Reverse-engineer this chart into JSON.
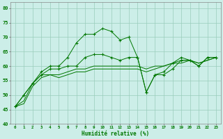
{
  "title": "",
  "xlabel": "Humidité relative (%)",
  "ylabel": "",
  "background_color": "#cceee8",
  "grid_color": "#99ccbb",
  "line_color": "#007700",
  "xlim": [
    -0.5,
    23.5
  ],
  "ylim": [
    40,
    82
  ],
  "yticks": [
    40,
    45,
    50,
    55,
    60,
    65,
    70,
    75,
    80
  ],
  "xticks": [
    0,
    1,
    2,
    3,
    4,
    5,
    6,
    7,
    8,
    9,
    10,
    11,
    12,
    13,
    14,
    15,
    16,
    17,
    18,
    19,
    20,
    21,
    22,
    23
  ],
  "series_marked": [
    [
      46,
      50,
      54,
      58,
      60,
      60,
      63,
      68,
      71,
      71,
      73,
      72,
      69,
      70,
      63,
      51,
      57,
      58,
      61,
      63,
      62,
      60,
      63,
      63
    ],
    [
      46,
      50,
      54,
      57,
      59,
      59,
      60,
      60,
      63,
      64,
      64,
      63,
      62,
      63,
      63,
      51,
      57,
      57,
      59,
      62,
      62,
      60,
      63,
      63
    ]
  ],
  "series_flat": [
    [
      46,
      48,
      54,
      57,
      57,
      57,
      58,
      59,
      59,
      60,
      60,
      60,
      60,
      60,
      60,
      59,
      60,
      60,
      61,
      62,
      62,
      61,
      62,
      63
    ],
    [
      46,
      47,
      53,
      56,
      57,
      56,
      57,
      58,
      58,
      59,
      59,
      59,
      59,
      59,
      59,
      58,
      59,
      60,
      61,
      61,
      62,
      61,
      62,
      63
    ]
  ]
}
